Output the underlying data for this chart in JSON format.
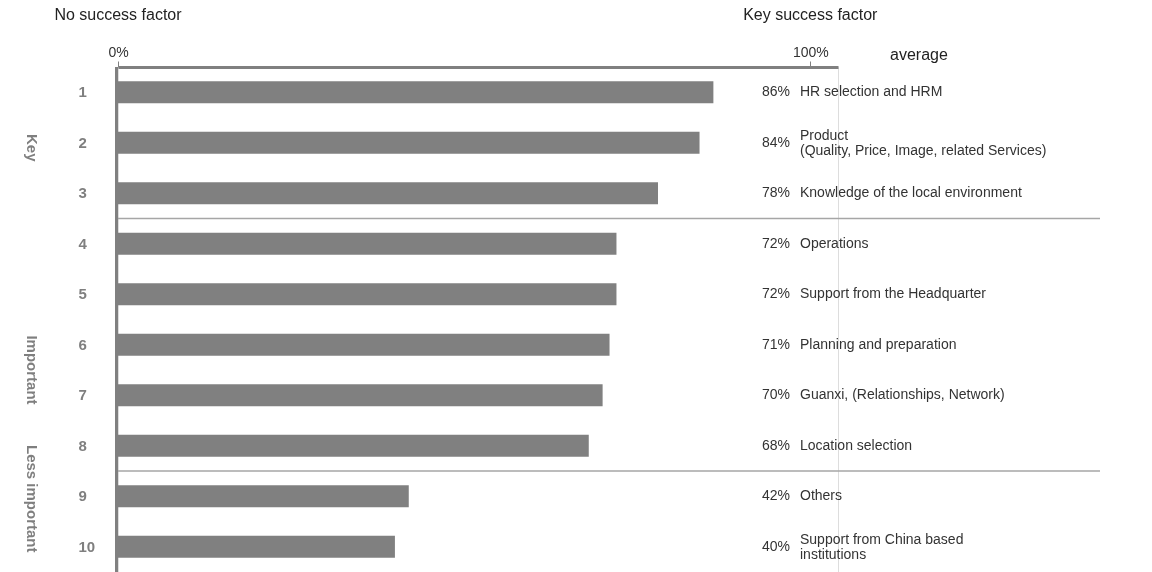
{
  "chart_data": {
    "type": "bar",
    "orientation": "horizontal",
    "categories": [
      "1",
      "2",
      "3",
      "4",
      "5",
      "6",
      "7",
      "8",
      "9",
      "10"
    ],
    "values": [
      86,
      84,
      78,
      72,
      72,
      71,
      70,
      68,
      42,
      40
    ],
    "value_labels": [
      "86%",
      "84%",
      "78%",
      "72%",
      "72%",
      "71%",
      "70%",
      "68%",
      "42%",
      "40%"
    ],
    "color": "#808080",
    "xlim": [
      0,
      104
    ],
    "xticks": [
      {
        "value": 0,
        "label": "0%"
      },
      {
        "value": 100,
        "label": "100%"
      }
    ],
    "grid": false,
    "annotations": [
      "No success factor",
      "Key success factor",
      "average",
      "Key",
      "Important",
      "Less important",
      "HR selection and HRM",
      "Product\n(Quality, Price, Image, related Services)",
      "Knowledge of the local environment",
      "Operations",
      "Support from the Headquarter",
      "Planning and preparation",
      "Guanxi, (Relationships, Network)",
      "Location selection",
      "Others",
      "Support from China based\ninstitutions"
    ]
  }
}
